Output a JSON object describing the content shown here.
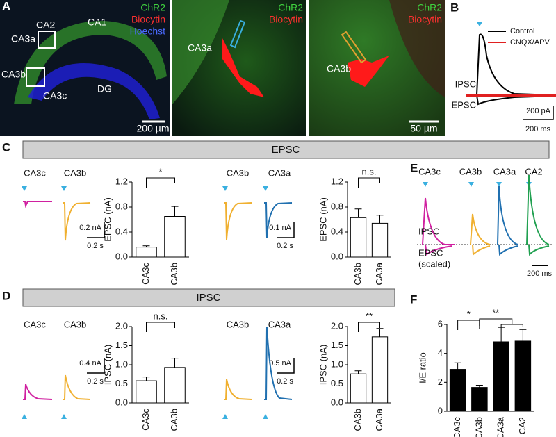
{
  "panel_labels": [
    "A",
    "B",
    "C",
    "D",
    "E",
    "F"
  ],
  "panel_a": {
    "image1": {
      "regions": [
        "CA2",
        "CA3a",
        "CA1",
        "CA3b",
        "CA3c",
        "DG"
      ],
      "legend": [
        "ChR2",
        "Biocytin",
        "Hoechst"
      ],
      "scale_bar": "200 µm"
    },
    "image2": {
      "cell": "CA3a",
      "legend": [
        "ChR2",
        "Biocytin"
      ]
    },
    "image3": {
      "cell": "CA3b",
      "legend": [
        "ChR2",
        "Biocytin"
      ],
      "scale_bar": "50 µm"
    }
  },
  "panel_b": {
    "legend": [
      "Control",
      "CNQX/APV"
    ],
    "labels": [
      "IPSC",
      "EPSC"
    ],
    "scale_y": "200 pA",
    "scale_x": "200 ms"
  },
  "panel_c": {
    "header": "EPSC",
    "traces": [
      "CA3c",
      "CA3b",
      "CA3b",
      "CA3a"
    ],
    "scales": [
      "0.2 nA",
      "0.2 s",
      "0.1 nA",
      "0.2 s"
    ]
  },
  "panel_d": {
    "header": "IPSC",
    "traces": [
      "CA3c",
      "CA3b",
      "CA3b",
      "CA3a"
    ],
    "scales": [
      "0.4 nA",
      "0.2 s",
      "0.5 nA",
      "0.2 s"
    ]
  },
  "panel_e": {
    "regions": [
      "CA3c",
      "CA3b",
      "CA3a",
      "CA2"
    ],
    "labels": [
      "IPSC",
      "EPSC",
      "(scaled)"
    ],
    "scale_x": "200 ms"
  },
  "chart_data": [
    {
      "type": "bar",
      "ylabel": "EPSC (nA)",
      "categories": [
        "CA3c",
        "CA3b"
      ],
      "values": [
        0.16,
        0.65
      ],
      "errors": [
        0.02,
        0.16
      ],
      "color": "#ffffff",
      "ylim": [
        0,
        1.2
      ],
      "yticks": [
        {
          "value": 0,
          "label": "0.0"
        },
        0.4,
        0.8,
        1.2
      ],
      "significance": [
        "*"
      ]
    },
    {
      "type": "bar",
      "ylabel": "EPSC (nA)",
      "categories": [
        "CA3b",
        "CA3a"
      ],
      "values": [
        0.63,
        0.54
      ],
      "errors": [
        0.14,
        0.13
      ],
      "color": "#ffffff",
      "ylim": [
        0,
        1.2
      ],
      "yticks": [
        {
          "value": 0,
          "label": "0.0"
        },
        0.4,
        0.8,
        1.2
      ],
      "significance": [
        "n.s."
      ]
    },
    {
      "type": "bar",
      "ylabel": "IPSC (nA)",
      "categories": [
        "CA3c",
        "CA3b"
      ],
      "values": [
        0.58,
        0.93
      ],
      "errors": [
        0.1,
        0.24
      ],
      "color": "#ffffff",
      "ylim": [
        0,
        2
      ],
      "yticks": [
        {
          "value": 0,
          "label": "0.0"
        },
        0.5,
        {
          "value": 1,
          "label": "1.0"
        },
        1.5,
        {
          "value": 2,
          "label": "2.0"
        }
      ],
      "significance": [
        "n.s."
      ]
    },
    {
      "type": "bar",
      "ylabel": "IPSC (nA)",
      "categories": [
        "CA3b",
        "CA3a"
      ],
      "values": [
        0.76,
        1.73
      ],
      "errors": [
        0.08,
        0.22
      ],
      "color": "#ffffff",
      "ylim": [
        0,
        2
      ],
      "yticks": [
        {
          "value": 0,
          "label": "0.0"
        },
        0.5,
        {
          "value": 1,
          "label": "1.0"
        },
        1.5,
        {
          "value": 2,
          "label": "2.0"
        }
      ],
      "significance": [
        "**"
      ]
    },
    {
      "type": "bar",
      "ylabel": "I/E ratio",
      "categories": [
        "CA3c",
        "CA3b",
        "CA3a",
        "CA2"
      ],
      "values": [
        2.9,
        1.65,
        4.8,
        4.85
      ],
      "errors": [
        0.45,
        0.15,
        1.0,
        0.8
      ],
      "color": "#000000",
      "ylim": [
        0,
        6
      ],
      "yticks": [
        0,
        2,
        4,
        6
      ],
      "significance": [
        "*",
        "**"
      ]
    }
  ]
}
